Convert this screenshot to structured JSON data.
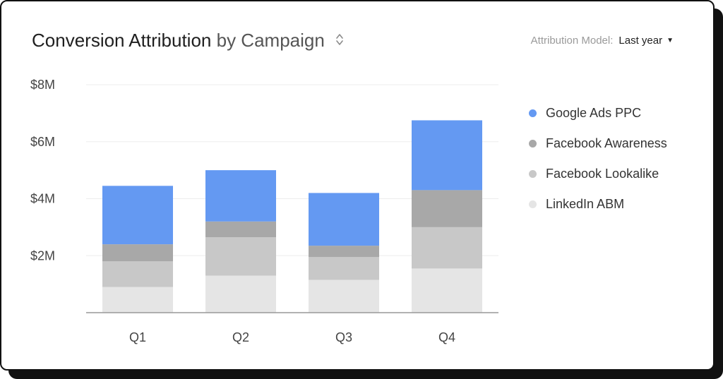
{
  "header": {
    "title_main": "Conversion Attribution",
    "title_sub": "by Campaign",
    "sort_icon": "sort-updown-icon",
    "model_label": "Attribution Model:",
    "model_value": "Last year",
    "model_caret_icon": "caret-down-icon"
  },
  "colors": {
    "Google Ads PPC": "#6499F2",
    "Facebook Awareness": "#A8A8A8",
    "Facebook Lookalike": "#C8C8C8",
    "LinkedIn ABM": "#E5E5E5",
    "axis": "#999999",
    "grid": "#EDEDED"
  },
  "chart_data": {
    "type": "bar",
    "stacked": true,
    "title": "Conversion Attribution by Campaign",
    "categories": [
      "Q1",
      "Q2",
      "Q3",
      "Q4"
    ],
    "y_ticks": [
      2,
      4,
      6,
      8
    ],
    "y_tick_labels": [
      "$2M",
      "$4M",
      "$6M",
      "$8M"
    ],
    "ylim": [
      0,
      8
    ],
    "grid": true,
    "legend_position": "right",
    "series": [
      {
        "name": "LinkedIn ABM",
        "values": [
          0.9,
          1.3,
          1.15,
          1.55
        ]
      },
      {
        "name": "Facebook Lookalike",
        "values": [
          0.9,
          1.35,
          0.8,
          1.45
        ]
      },
      {
        "name": "Facebook Awareness",
        "values": [
          0.6,
          0.55,
          0.4,
          1.3
        ]
      },
      {
        "name": "Google Ads PPC",
        "values": [
          2.05,
          1.8,
          1.85,
          2.45
        ]
      }
    ],
    "legend_order": [
      "Google Ads PPC",
      "Facebook Awareness",
      "Facebook Lookalike",
      "LinkedIn ABM"
    ]
  }
}
